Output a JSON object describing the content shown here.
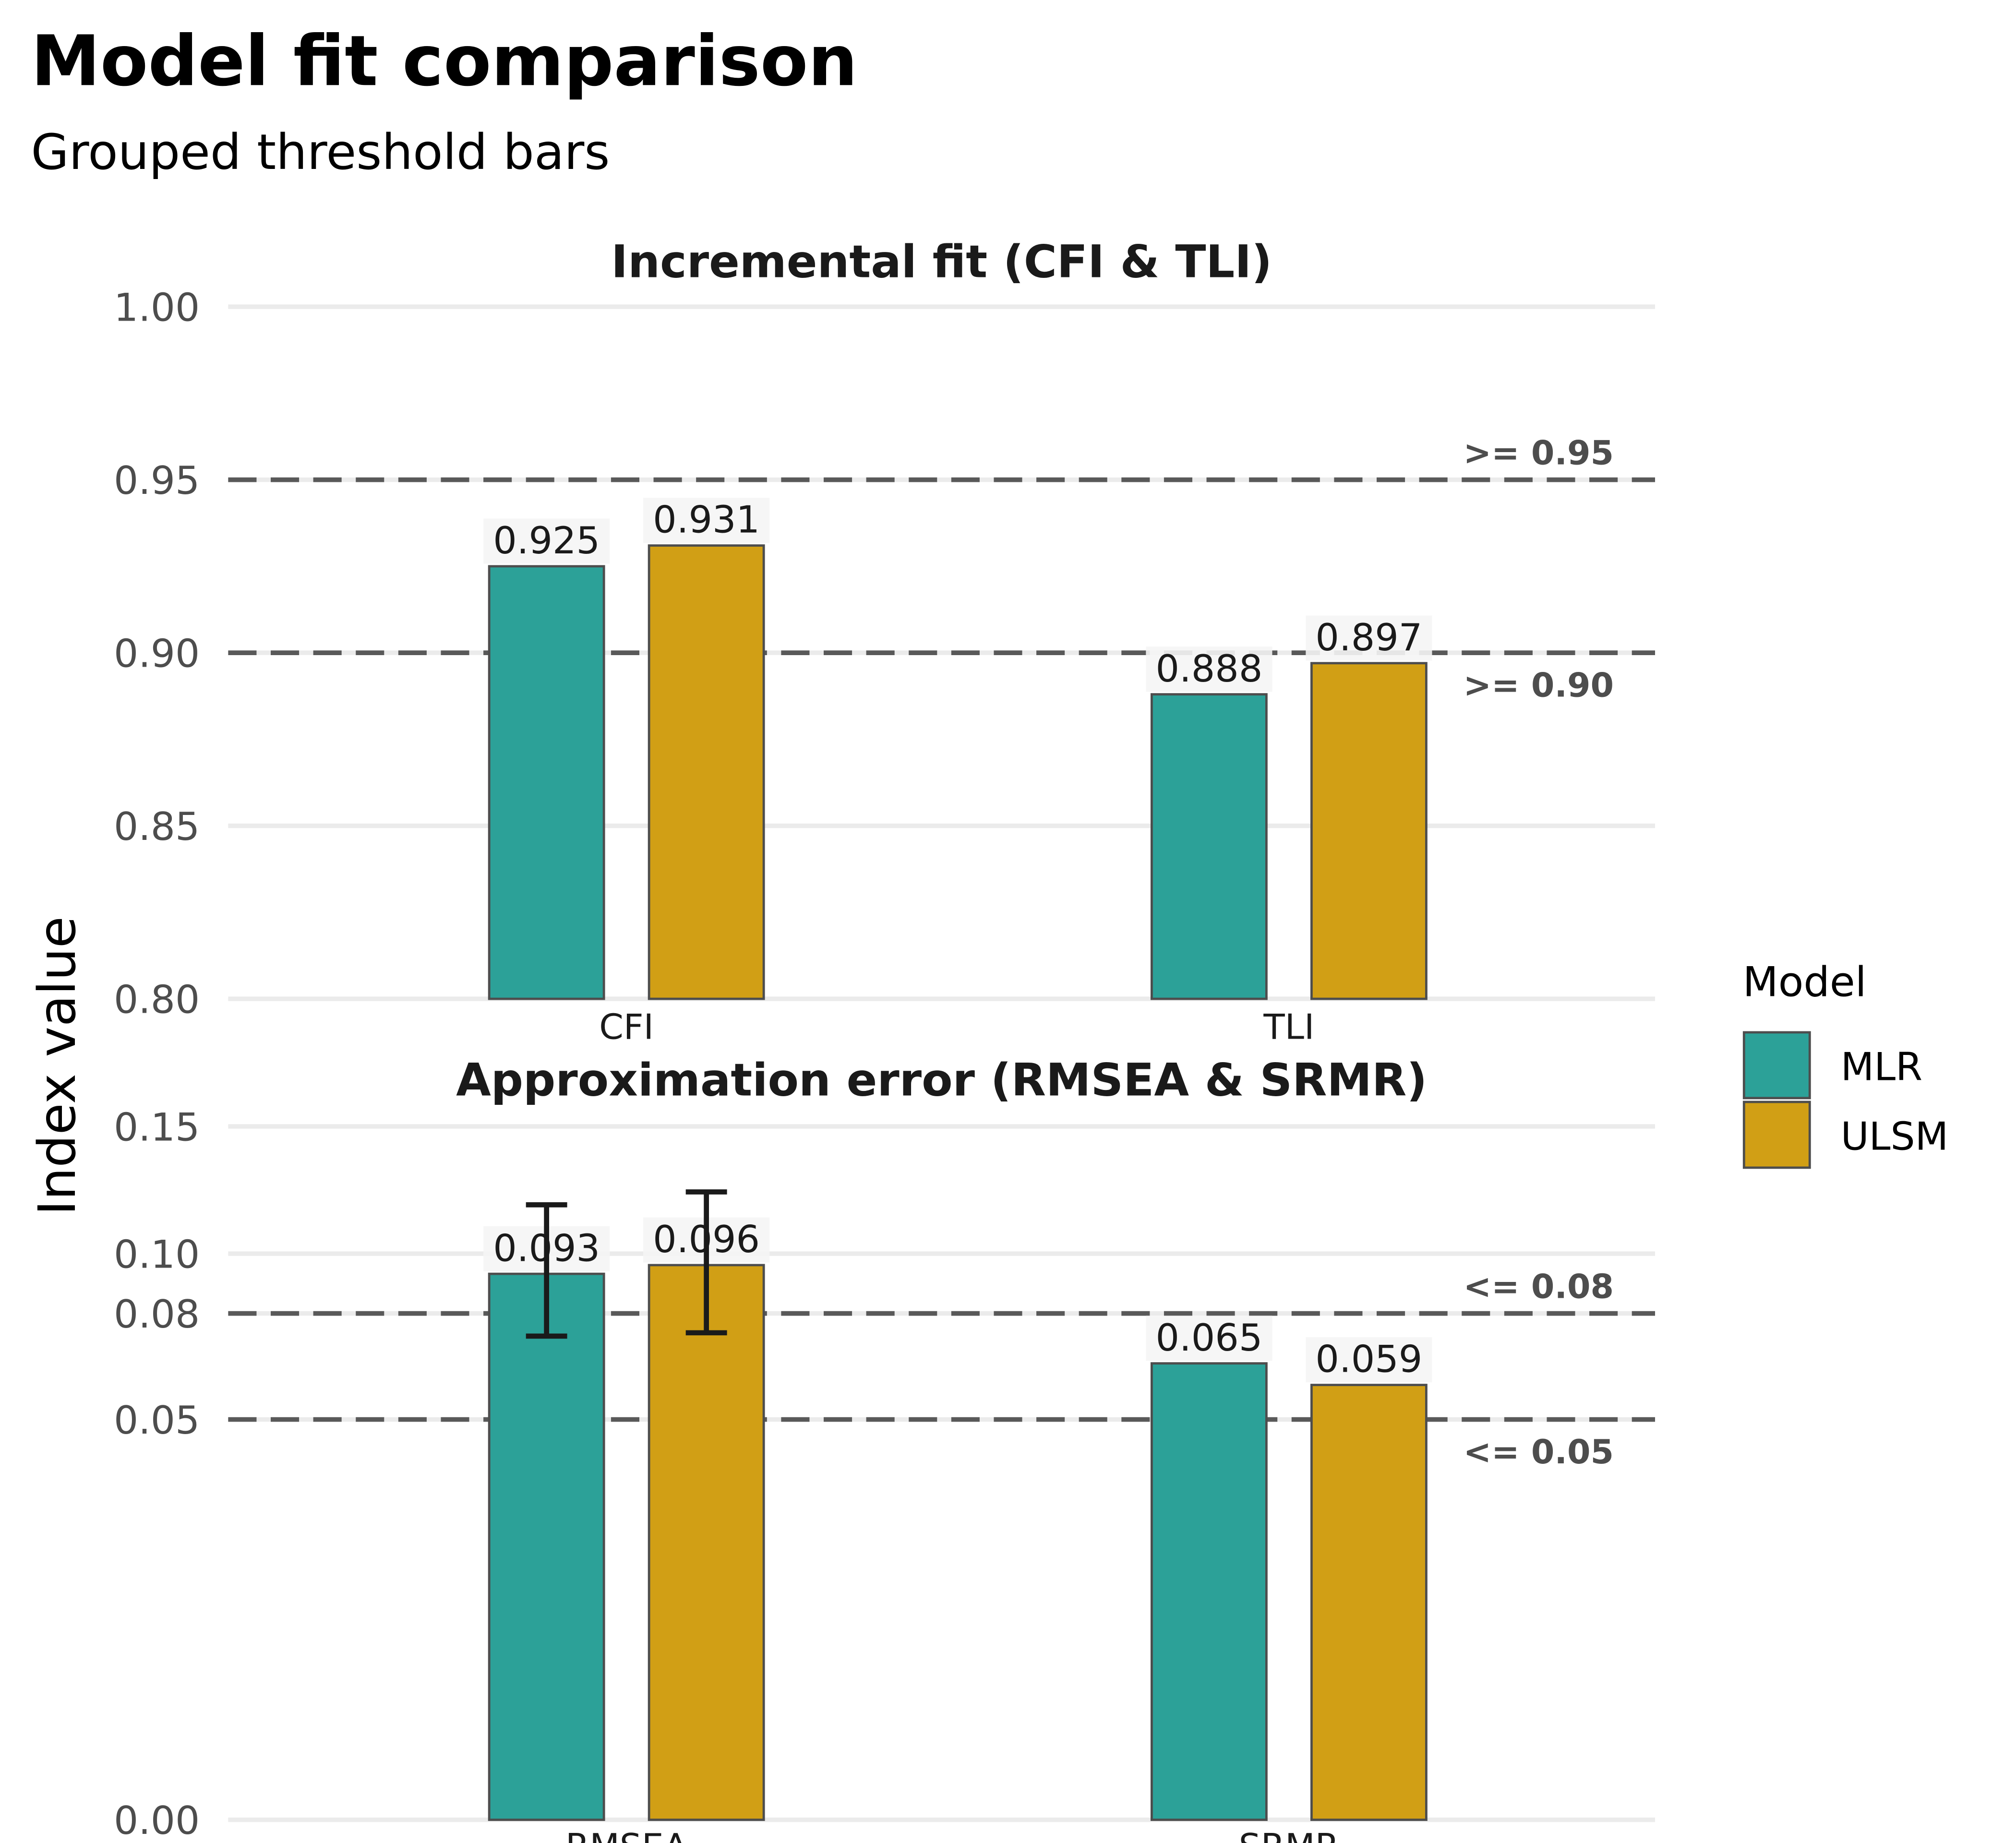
{
  "title": "Model fit comparison",
  "subtitle": "Grouped threshold bars",
  "ylabel": "Index value",
  "legend": {
    "title": "Model",
    "position": "right",
    "items": [
      {
        "label": "MLR",
        "color": "#2ca198"
      },
      {
        "label": "ULSM",
        "color": "#d19f15"
      }
    ]
  },
  "colors": {
    "MLR": "#2ca198",
    "ULSM": "#d19f15",
    "bar_outline": "#4d4d4d",
    "threshold_line": "#595959",
    "gridline": "#ebebeb",
    "error_bar": "#1a1a1a"
  },
  "chart_data": [
    {
      "type": "bar",
      "title": "Incremental fit (CFI & TLI)",
      "categories": [
        "CFI",
        "TLI"
      ],
      "series": [
        {
          "name": "MLR",
          "values": [
            0.925,
            0.888
          ],
          "labels": [
            "0.925",
            "0.888"
          ]
        },
        {
          "name": "ULSM",
          "values": [
            0.931,
            0.897
          ],
          "labels": [
            "0.931",
            "0.897"
          ]
        }
      ],
      "ylim": [
        0.8,
        1.0
      ],
      "yticks": [
        0.8,
        0.85,
        0.9,
        0.95,
        1.0
      ],
      "ytick_labels": [
        "0.80",
        "0.85",
        "0.90",
        "0.95",
        "1.00"
      ],
      "thresholds": [
        {
          "value": 0.95,
          "label": ">= 0.95",
          "label_side": "above"
        },
        {
          "value": 0.9,
          "label": ">= 0.90",
          "label_side": "below"
        }
      ],
      "grid": true
    },
    {
      "type": "bar",
      "title": "Approximation error (RMSEA & SRMR)",
      "categories": [
        "RMSEA",
        "SRMR"
      ],
      "series": [
        {
          "name": "MLR",
          "values": [
            0.093,
            0.065
          ],
          "labels": [
            "0.093",
            "0.065"
          ],
          "error_bars": [
            [
              0.073,
              0.118
            ],
            null
          ]
        },
        {
          "name": "ULSM",
          "values": [
            0.096,
            0.059
          ],
          "labels": [
            "0.096",
            "0.059"
          ],
          "error_bars": [
            [
              0.074,
              0.123
            ],
            null
          ]
        }
      ],
      "ylim": [
        0.0,
        0.15
      ],
      "y_scale": "sqrt",
      "yticks": [
        0.0,
        0.05,
        0.08,
        0.1,
        0.15
      ],
      "ytick_labels": [
        "0.00",
        "0.05",
        "0.08",
        "0.10",
        "0.15"
      ],
      "thresholds": [
        {
          "value": 0.08,
          "label": "<= 0.08",
          "label_side": "above"
        },
        {
          "value": 0.05,
          "label": "<= 0.05",
          "label_side": "below"
        }
      ],
      "grid": true
    }
  ]
}
